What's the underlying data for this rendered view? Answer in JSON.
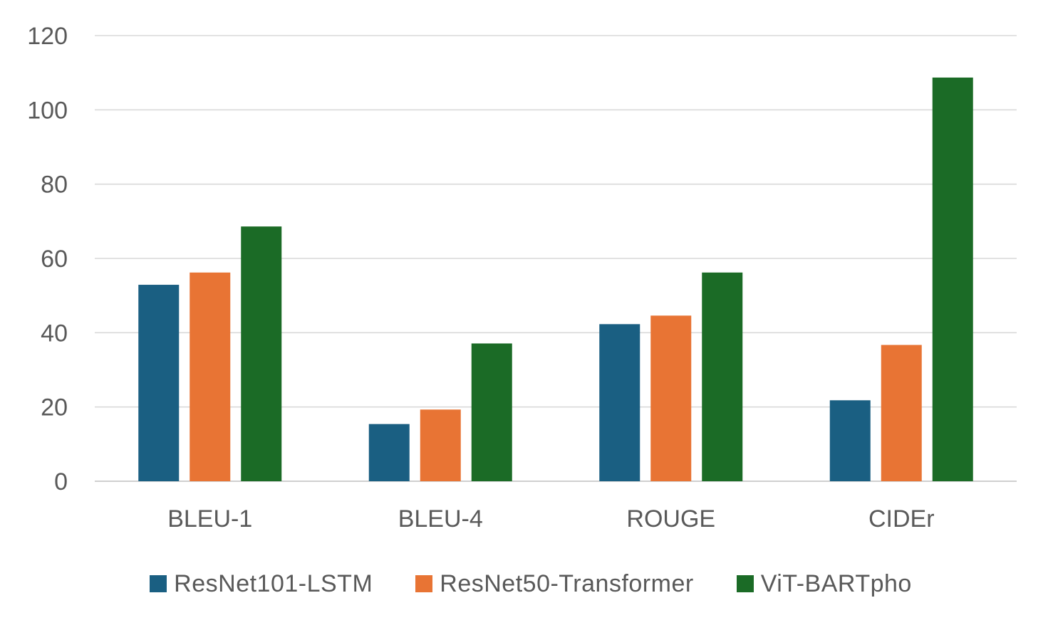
{
  "chart_data": {
    "type": "bar",
    "title": "",
    "xlabel": "",
    "ylabel": "",
    "categories": [
      "BLEU-1",
      "BLEU-4",
      "ROUGE",
      "CIDEr"
    ],
    "series": [
      {
        "name": "ResNet101-LSTM",
        "color": "#1a5f82",
        "values": [
          52.9,
          15.4,
          42.3,
          21.8
        ]
      },
      {
        "name": "ResNet50-Transformer",
        "color": "#e87434",
        "values": [
          56.2,
          19.3,
          44.6,
          36.7
        ]
      },
      {
        "name": "ViT-BARTpho",
        "color": "#1b6b26",
        "values": [
          68.6,
          37.1,
          56.2,
          108.7
        ]
      }
    ],
    "ylim": [
      0,
      120
    ],
    "yticks": [
      0,
      20,
      40,
      60,
      80,
      100,
      120
    ],
    "grid": true,
    "legend_position": "bottom"
  }
}
